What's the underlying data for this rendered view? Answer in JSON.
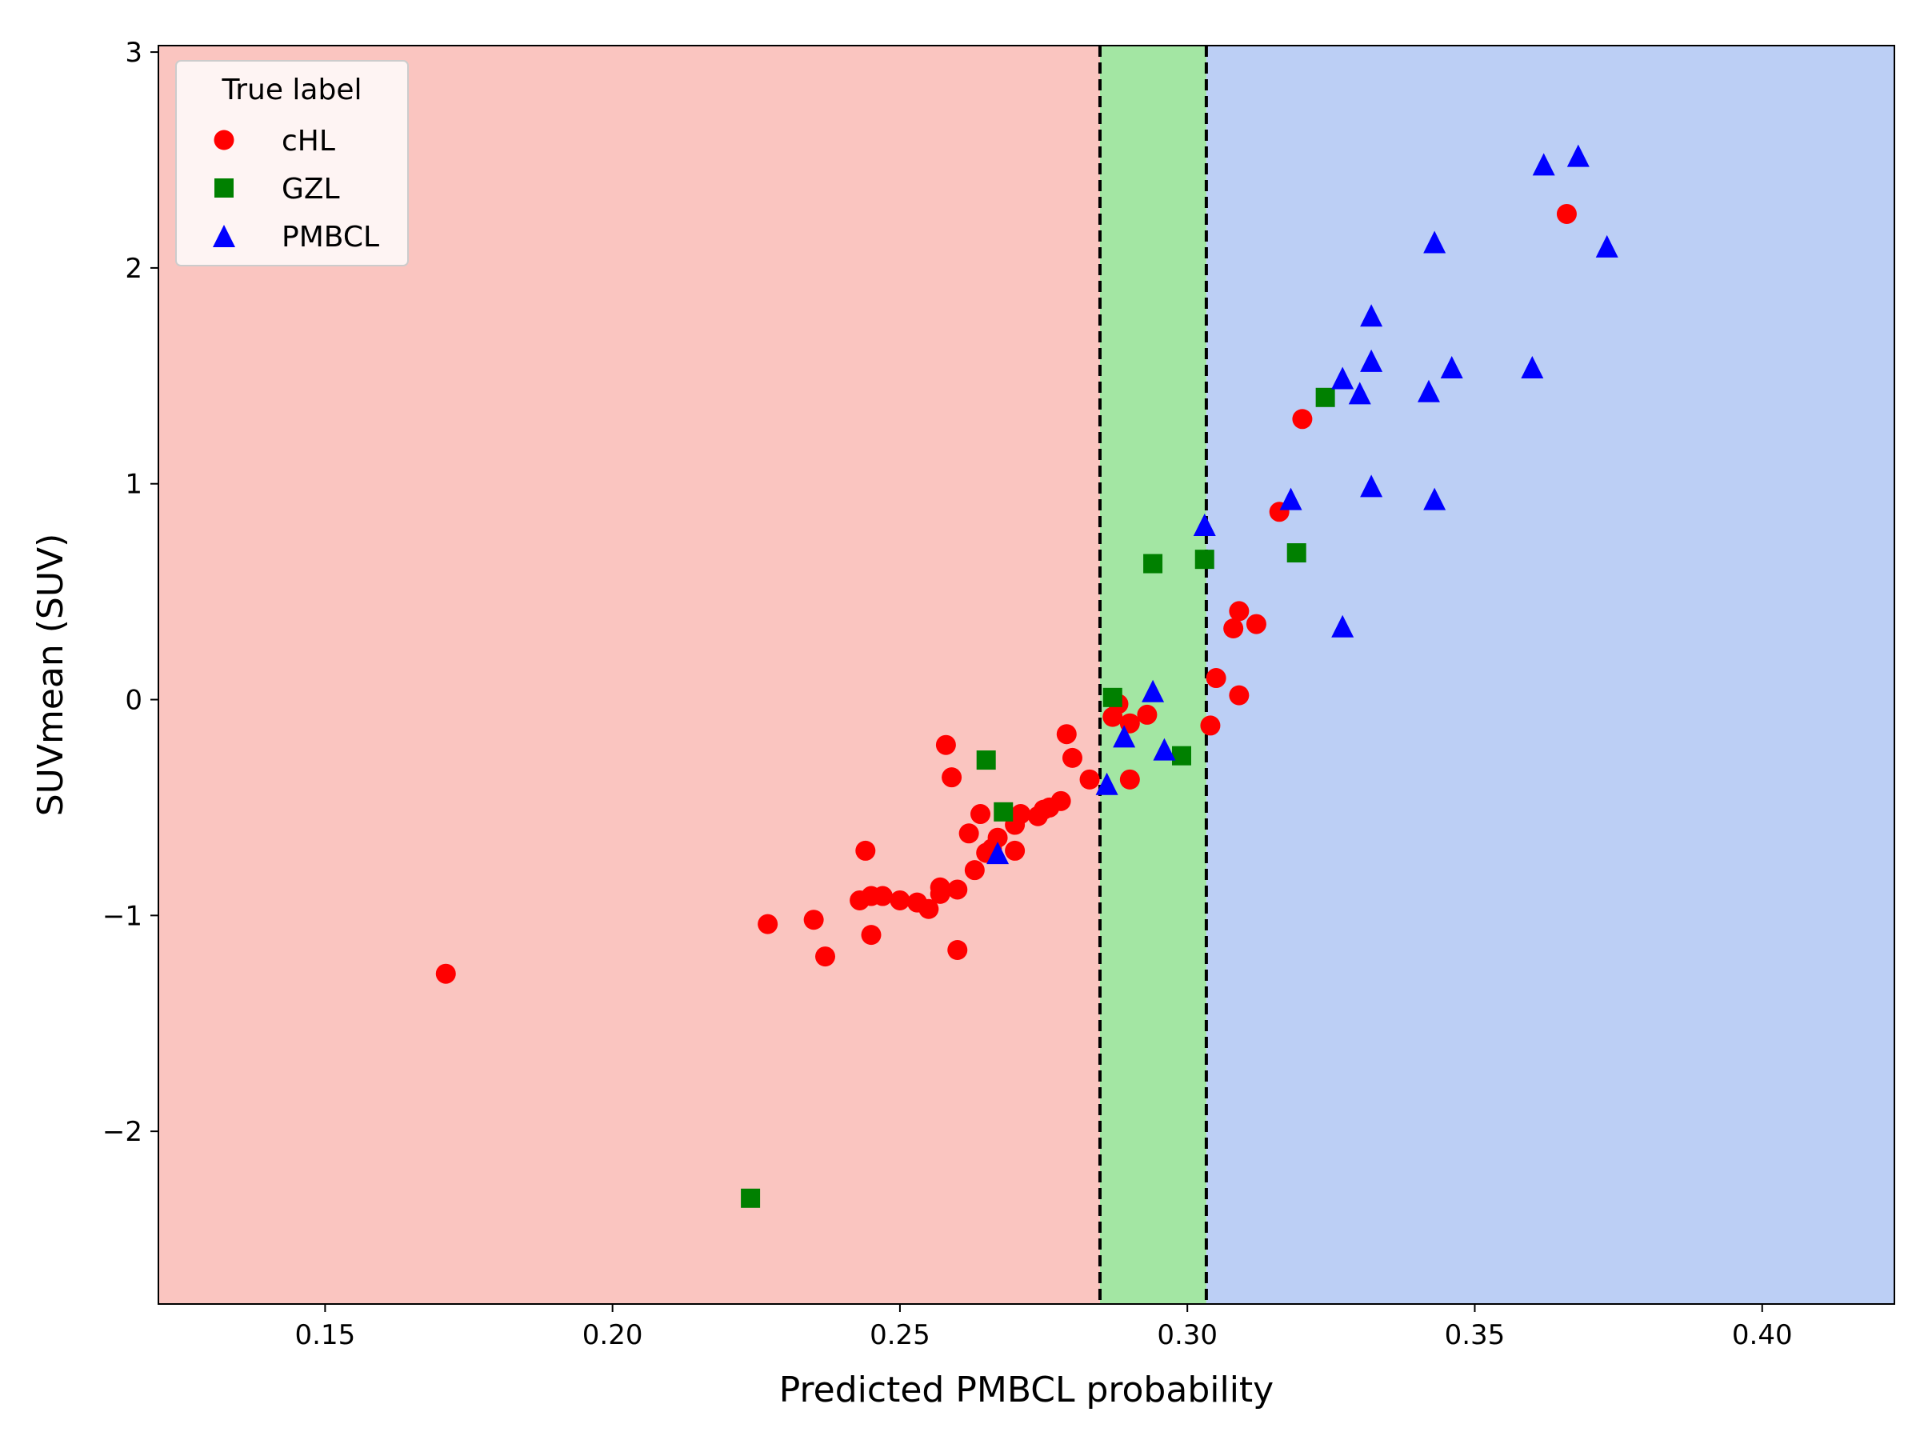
{
  "chart_data": {
    "type": "scatter",
    "title": "",
    "xlabel": "Predicted PMBCL probability",
    "ylabel": "SUVmean (SUV)",
    "xlim": [
      0.121,
      0.423
    ],
    "ylim": [
      -2.8,
      3.03
    ],
    "xticks": [
      0.15,
      0.2,
      0.25,
      0.3,
      0.35,
      0.4
    ],
    "xtick_labels": [
      "0.15",
      "0.20",
      "0.25",
      "0.30",
      "0.35",
      "0.40"
    ],
    "yticks": [
      -2,
      -1,
      0,
      1,
      2,
      3
    ],
    "ytick_labels": [
      "−2",
      "−1",
      "0",
      "1",
      "2",
      "3"
    ],
    "grid": false,
    "regions": [
      {
        "x0": 0.121,
        "x1": 0.2848,
        "color": "#fac5c0"
      },
      {
        "x0": 0.2848,
        "x1": 0.3033,
        "color": "#a3e6a3"
      },
      {
        "x0": 0.3033,
        "x1": 0.423,
        "color": "#bccff5"
      }
    ],
    "thresholds": [
      0.2848,
      0.3033
    ],
    "legend": {
      "title": "True label",
      "placement": "top-left",
      "entries": [
        "cHL",
        "GZL",
        "PMBCL"
      ]
    },
    "series": [
      {
        "name": "cHL",
        "marker": "circle",
        "color": "#ff0000",
        "points": [
          [
            0.171,
            -1.27
          ],
          [
            0.227,
            -1.04
          ],
          [
            0.235,
            -1.02
          ],
          [
            0.237,
            -1.19
          ],
          [
            0.243,
            -0.93
          ],
          [
            0.244,
            -0.7
          ],
          [
            0.245,
            -0.91
          ],
          [
            0.245,
            -1.09
          ],
          [
            0.247,
            -0.91
          ],
          [
            0.25,
            -0.93
          ],
          [
            0.253,
            -0.94
          ],
          [
            0.255,
            -0.97
          ],
          [
            0.257,
            -0.87
          ],
          [
            0.257,
            -0.9
          ],
          [
            0.258,
            -0.21
          ],
          [
            0.259,
            -0.36
          ],
          [
            0.26,
            -1.16
          ],
          [
            0.26,
            -0.88
          ],
          [
            0.262,
            -0.62
          ],
          [
            0.263,
            -0.79
          ],
          [
            0.264,
            -0.53
          ],
          [
            0.265,
            -0.71
          ],
          [
            0.266,
            -0.69
          ],
          [
            0.267,
            -0.64
          ],
          [
            0.27,
            -0.7
          ],
          [
            0.27,
            -0.58
          ],
          [
            0.271,
            -0.53
          ],
          [
            0.274,
            -0.54
          ],
          [
            0.275,
            -0.51
          ],
          [
            0.276,
            -0.5
          ],
          [
            0.278,
            -0.47
          ],
          [
            0.279,
            -0.16
          ],
          [
            0.28,
            -0.27
          ],
          [
            0.283,
            -0.37
          ],
          [
            0.287,
            -0.08
          ],
          [
            0.288,
            -0.02
          ],
          [
            0.29,
            -0.37
          ],
          [
            0.29,
            -0.11
          ],
          [
            0.293,
            -0.07
          ],
          [
            0.304,
            -0.12
          ],
          [
            0.305,
            0.1
          ],
          [
            0.308,
            0.33
          ],
          [
            0.309,
            0.41
          ],
          [
            0.309,
            0.02
          ],
          [
            0.312,
            0.35
          ],
          [
            0.316,
            0.87
          ],
          [
            0.32,
            1.3
          ],
          [
            0.366,
            2.25
          ]
        ]
      },
      {
        "name": "GZL",
        "marker": "square",
        "color": "#008000",
        "points": [
          [
            0.224,
            -2.31
          ],
          [
            0.265,
            -0.28
          ],
          [
            0.268,
            -0.52
          ],
          [
            0.287,
            0.01
          ],
          [
            0.294,
            0.63
          ],
          [
            0.299,
            -0.26
          ],
          [
            0.303,
            0.65
          ],
          [
            0.319,
            0.68
          ],
          [
            0.324,
            1.4
          ]
        ]
      },
      {
        "name": "PMBCL",
        "marker": "triangle",
        "color": "#0000ff",
        "points": [
          [
            0.267,
            -0.71
          ],
          [
            0.286,
            -0.39
          ],
          [
            0.289,
            -0.17
          ],
          [
            0.294,
            0.04
          ],
          [
            0.296,
            -0.23
          ],
          [
            0.303,
            0.81
          ],
          [
            0.318,
            0.93
          ],
          [
            0.327,
            0.34
          ],
          [
            0.327,
            1.49
          ],
          [
            0.33,
            1.42
          ],
          [
            0.332,
            1.57
          ],
          [
            0.332,
            1.78
          ],
          [
            0.332,
            0.99
          ],
          [
            0.342,
            1.43
          ],
          [
            0.343,
            2.12
          ],
          [
            0.343,
            0.93
          ],
          [
            0.346,
            1.54
          ],
          [
            0.36,
            1.54
          ],
          [
            0.362,
            2.48
          ],
          [
            0.368,
            2.52
          ],
          [
            0.373,
            2.1
          ]
        ]
      }
    ]
  }
}
